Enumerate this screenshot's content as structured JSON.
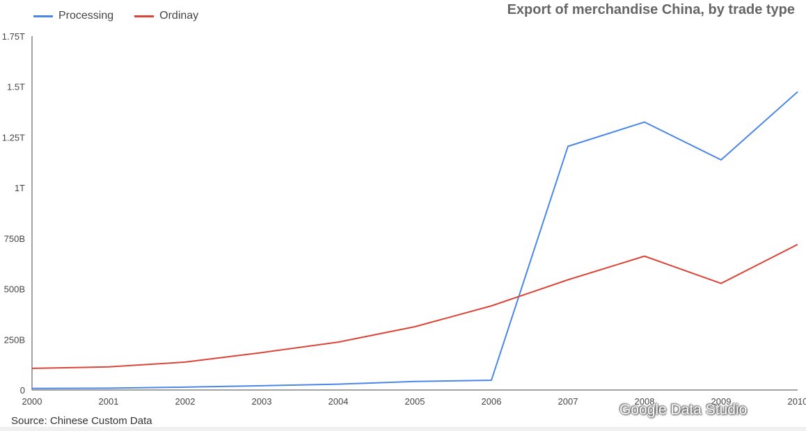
{
  "chart_data": {
    "type": "line",
    "title": "Export of merchandise China, by trade type",
    "xlabel": "",
    "ylabel": "",
    "x": [
      "2000",
      "2001",
      "2002",
      "2003",
      "2004",
      "2005",
      "2006",
      "2007",
      "2008",
      "2009",
      "2010"
    ],
    "y_ticks": [
      "0",
      "250B",
      "500B",
      "750B",
      "1T",
      "1.25T",
      "1.5T",
      "1.75T"
    ],
    "ylim": [
      0,
      1750000000000
    ],
    "grid": false,
    "legend_position": "top-left",
    "series": [
      {
        "name": "Processing",
        "color": "#4a86e8",
        "values": [
          8000000000,
          9000000000,
          14000000000,
          21000000000,
          29000000000,
          42000000000,
          48000000000,
          1205000000000,
          1325000000000,
          1138000000000,
          1475000000000
        ]
      },
      {
        "name": "Ordinay",
        "color": "#db4437",
        "values": [
          107000000000,
          114000000000,
          138000000000,
          185000000000,
          237000000000,
          313000000000,
          416000000000,
          545000000000,
          662000000000,
          527000000000,
          720000000000
        ]
      }
    ]
  },
  "footer": {
    "source": "Source: Chinese Custom Data",
    "watermark": "Google Data Studio"
  }
}
